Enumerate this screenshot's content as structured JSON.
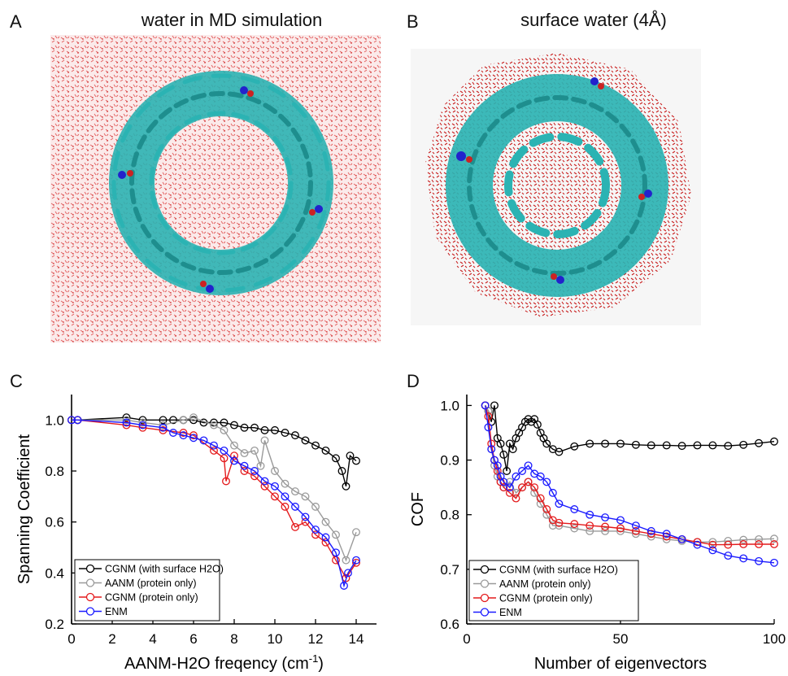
{
  "panels": {
    "A": {
      "letter": "A",
      "title": "water in MD simulation"
    },
    "B": {
      "letter": "B",
      "title": "surface water (4Å)"
    },
    "C": {
      "letter": "C"
    },
    "D": {
      "letter": "D"
    }
  },
  "colors": {
    "cgnm_surface": "#000000",
    "aanm": "#9a9a9a",
    "cgnm_protein": "#e41a1c",
    "enm": "#1a1aff",
    "protein_ribbon": "#2bb3b3",
    "water_red": "#d62020",
    "water_bg": "#f7dede"
  },
  "chart_data": [
    {
      "id": "C",
      "type": "line",
      "marker": "open-circle",
      "xlabel": "AANM-H2O freqency (cm",
      "xlabel_sup": "-1",
      "xlabel_close": ")",
      "ylabel": "Spanning Coefficient",
      "xlim": [
        0,
        15
      ],
      "ylim": [
        0.2,
        1.1
      ],
      "xticks": [
        "0",
        "2",
        "4",
        "6",
        "8",
        "10",
        "12",
        "14"
      ],
      "yticks": [
        "0.2",
        "0.4",
        "0.6",
        "0.8",
        "1.0"
      ],
      "legend_position": "bottom-left",
      "series": [
        {
          "name": "CGNM (with surface H2O)",
          "color": "#000000",
          "x": [
            0.0,
            0.3,
            2.7,
            3.5,
            4.5,
            5.0,
            5.5,
            6.0,
            6.5,
            7.0,
            7.5,
            8.0,
            8.5,
            9.0,
            9.5,
            10.0,
            10.5,
            11.0,
            11.5,
            12.0,
            12.5,
            13.0,
            13.3,
            13.5,
            13.7,
            14.0
          ],
          "y": [
            1.0,
            1.0,
            1.01,
            1.0,
            1.0,
            1.0,
            1.0,
            1.0,
            0.99,
            0.99,
            0.99,
            0.98,
            0.97,
            0.97,
            0.96,
            0.96,
            0.95,
            0.94,
            0.92,
            0.9,
            0.88,
            0.85,
            0.8,
            0.74,
            0.86,
            0.84
          ]
        },
        {
          "name": "AANM (protein only)",
          "color": "#9a9a9a",
          "x": [
            0.0,
            0.3,
            2.7,
            3.5,
            4.5,
            5.5,
            6.0,
            7.0,
            7.5,
            8.0,
            8.5,
            9.0,
            9.3,
            9.5,
            10.0,
            10.5,
            11.0,
            11.5,
            12.0,
            12.5,
            13.0,
            13.5,
            14.0
          ],
          "y": [
            1.0,
            1.0,
            1.0,
            0.99,
            0.98,
            1.0,
            1.01,
            0.98,
            0.96,
            0.9,
            0.87,
            0.88,
            0.82,
            0.92,
            0.8,
            0.75,
            0.72,
            0.7,
            0.66,
            0.6,
            0.55,
            0.45,
            0.56
          ]
        },
        {
          "name": "CGNM (protein only)",
          "color": "#e41a1c",
          "x": [
            0.0,
            0.3,
            2.7,
            3.5,
            4.5,
            5.5,
            6.0,
            7.0,
            7.5,
            7.6,
            8.0,
            8.5,
            9.0,
            9.5,
            10.0,
            10.5,
            11.0,
            11.5,
            12.0,
            12.5,
            13.0,
            13.5,
            14.0
          ],
          "y": [
            1.0,
            1.0,
            0.98,
            0.97,
            0.96,
            0.95,
            0.94,
            0.88,
            0.85,
            0.76,
            0.86,
            0.8,
            0.78,
            0.74,
            0.7,
            0.66,
            0.58,
            0.6,
            0.55,
            0.52,
            0.45,
            0.38,
            0.44
          ]
        },
        {
          "name": "ENM",
          "color": "#1a1aff",
          "x": [
            0.0,
            0.3,
            2.7,
            3.5,
            4.5,
            5.0,
            5.5,
            6.0,
            6.5,
            7.0,
            7.5,
            8.0,
            8.5,
            9.0,
            9.5,
            10.0,
            10.5,
            11.0,
            11.5,
            12.0,
            12.5,
            13.0,
            13.4,
            13.6,
            14.0
          ],
          "y": [
            1.0,
            1.0,
            0.99,
            0.98,
            0.97,
            0.95,
            0.94,
            0.93,
            0.92,
            0.9,
            0.88,
            0.84,
            0.82,
            0.8,
            0.76,
            0.74,
            0.7,
            0.66,
            0.62,
            0.57,
            0.54,
            0.48,
            0.35,
            0.4,
            0.45
          ]
        }
      ]
    },
    {
      "id": "D",
      "type": "line",
      "marker": "open-circle",
      "xlabel": "Number of eigenvectors",
      "ylabel": "COF",
      "xlim": [
        0,
        100
      ],
      "ylim": [
        0.6,
        1.02
      ],
      "xticks": [
        "0",
        "50",
        "100"
      ],
      "yticks": [
        "0.6",
        "0.7",
        "0.8",
        "0.9",
        "1.0"
      ],
      "legend_position": "bottom-left",
      "series": [
        {
          "name": "CGNM (with surface H2O)",
          "color": "#000000",
          "x": [
            6,
            7,
            8,
            9,
            10,
            11,
            12,
            13,
            14,
            15,
            16,
            17,
            18,
            19,
            20,
            21,
            22,
            23,
            24,
            25,
            26,
            28,
            30,
            35,
            40,
            45,
            50,
            55,
            60,
            65,
            70,
            75,
            80,
            85,
            90,
            95,
            100
          ],
          "y": [
            1.0,
            0.99,
            0.97,
            1.0,
            0.94,
            0.93,
            0.91,
            0.88,
            0.93,
            0.92,
            0.94,
            0.95,
            0.96,
            0.97,
            0.975,
            0.97,
            0.975,
            0.965,
            0.95,
            0.94,
            0.93,
            0.92,
            0.915,
            0.925,
            0.93,
            0.93,
            0.93,
            0.928,
            0.927,
            0.927,
            0.926,
            0.927,
            0.927,
            0.926,
            0.928,
            0.931,
            0.934
          ]
        },
        {
          "name": "AANM (protein only)",
          "color": "#9a9a9a",
          "x": [
            6,
            7,
            8,
            9,
            10,
            11,
            12,
            14,
            16,
            18,
            20,
            22,
            24,
            26,
            28,
            30,
            35,
            40,
            45,
            50,
            55,
            60,
            65,
            70,
            75,
            80,
            85,
            90,
            95,
            100
          ],
          "y": [
            1.0,
            0.99,
            0.92,
            0.89,
            0.87,
            0.86,
            0.85,
            0.86,
            0.84,
            0.85,
            0.86,
            0.84,
            0.82,
            0.8,
            0.78,
            0.78,
            0.775,
            0.77,
            0.77,
            0.77,
            0.765,
            0.76,
            0.755,
            0.752,
            0.75,
            0.75,
            0.752,
            0.754,
            0.755,
            0.756
          ]
        },
        {
          "name": "CGNM (protein only)",
          "color": "#e41a1c",
          "x": [
            6,
            7,
            8,
            9,
            10,
            11,
            12,
            14,
            16,
            18,
            20,
            22,
            24,
            26,
            28,
            30,
            35,
            40,
            45,
            50,
            55,
            60,
            65,
            70,
            75,
            80,
            85,
            90,
            95,
            100
          ],
          "y": [
            1.0,
            0.98,
            0.93,
            0.9,
            0.88,
            0.86,
            0.85,
            0.84,
            0.83,
            0.85,
            0.86,
            0.85,
            0.83,
            0.81,
            0.79,
            0.785,
            0.783,
            0.78,
            0.778,
            0.775,
            0.77,
            0.765,
            0.76,
            0.755,
            0.75,
            0.745,
            0.745,
            0.746,
            0.746,
            0.746
          ]
        },
        {
          "name": "ENM",
          "color": "#1a1aff",
          "x": [
            6,
            7,
            8,
            9,
            10,
            11,
            12,
            14,
            16,
            18,
            20,
            22,
            24,
            26,
            28,
            30,
            35,
            40,
            45,
            50,
            55,
            60,
            65,
            70,
            75,
            80,
            85,
            90,
            95,
            100
          ],
          "y": [
            1.0,
            0.96,
            0.92,
            0.9,
            0.89,
            0.87,
            0.86,
            0.85,
            0.87,
            0.88,
            0.89,
            0.875,
            0.87,
            0.86,
            0.84,
            0.82,
            0.81,
            0.8,
            0.795,
            0.79,
            0.78,
            0.77,
            0.765,
            0.755,
            0.745,
            0.735,
            0.725,
            0.72,
            0.715,
            0.712
          ]
        }
      ]
    }
  ]
}
